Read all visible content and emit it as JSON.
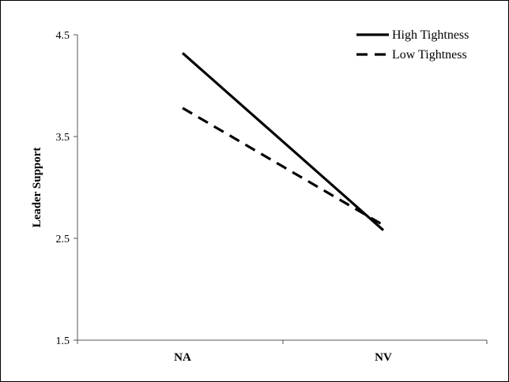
{
  "chart_data": {
    "type": "line",
    "categories": [
      "NA",
      "NV"
    ],
    "ylabel": "Leader Support",
    "ylim": [
      1.5,
      4.5
    ],
    "yticks": [
      "1.5",
      "2.5",
      "3.5",
      "4.5"
    ],
    "grid": false,
    "legend_position": "top-right",
    "series": [
      {
        "name": "High Tightness",
        "values": [
          4.32,
          2.58
        ],
        "style": "solid",
        "color": "#000000"
      },
      {
        "name": "Low Tightness",
        "values": [
          3.78,
          2.63
        ],
        "style": "dashed",
        "color": "#000000"
      }
    ]
  }
}
